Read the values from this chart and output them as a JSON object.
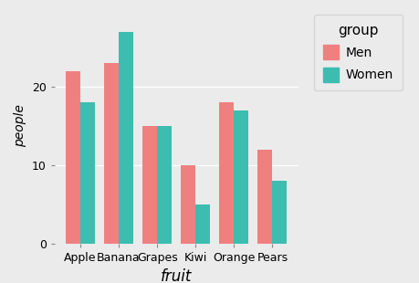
{
  "categories": [
    "Apple",
    "Banana",
    "Grapes",
    "Kiwi",
    "Orange",
    "Pears"
  ],
  "men_values": [
    22,
    23,
    15,
    10,
    18,
    12
  ],
  "women_values": [
    18,
    27,
    15,
    5,
    17,
    8
  ],
  "men_color": "#F08080",
  "women_color": "#3DBDB0",
  "xlabel": "fruit",
  "ylabel": "people",
  "ylim": [
    0,
    30
  ],
  "yticks": [
    0,
    10,
    20
  ],
  "background_color": "#EBEBEB",
  "plot_bg_color": "#EBEBEB",
  "legend_bg_color": "#EBEBEB",
  "grid_color": "#FFFFFF",
  "legend_title": "group",
  "legend_labels": [
    "Men",
    "Women"
  ],
  "bar_width": 0.38,
  "xlabel_fontsize": 12,
  "ylabel_fontsize": 10,
  "tick_fontsize": 9,
  "legend_fontsize": 10,
  "legend_title_fontsize": 11
}
